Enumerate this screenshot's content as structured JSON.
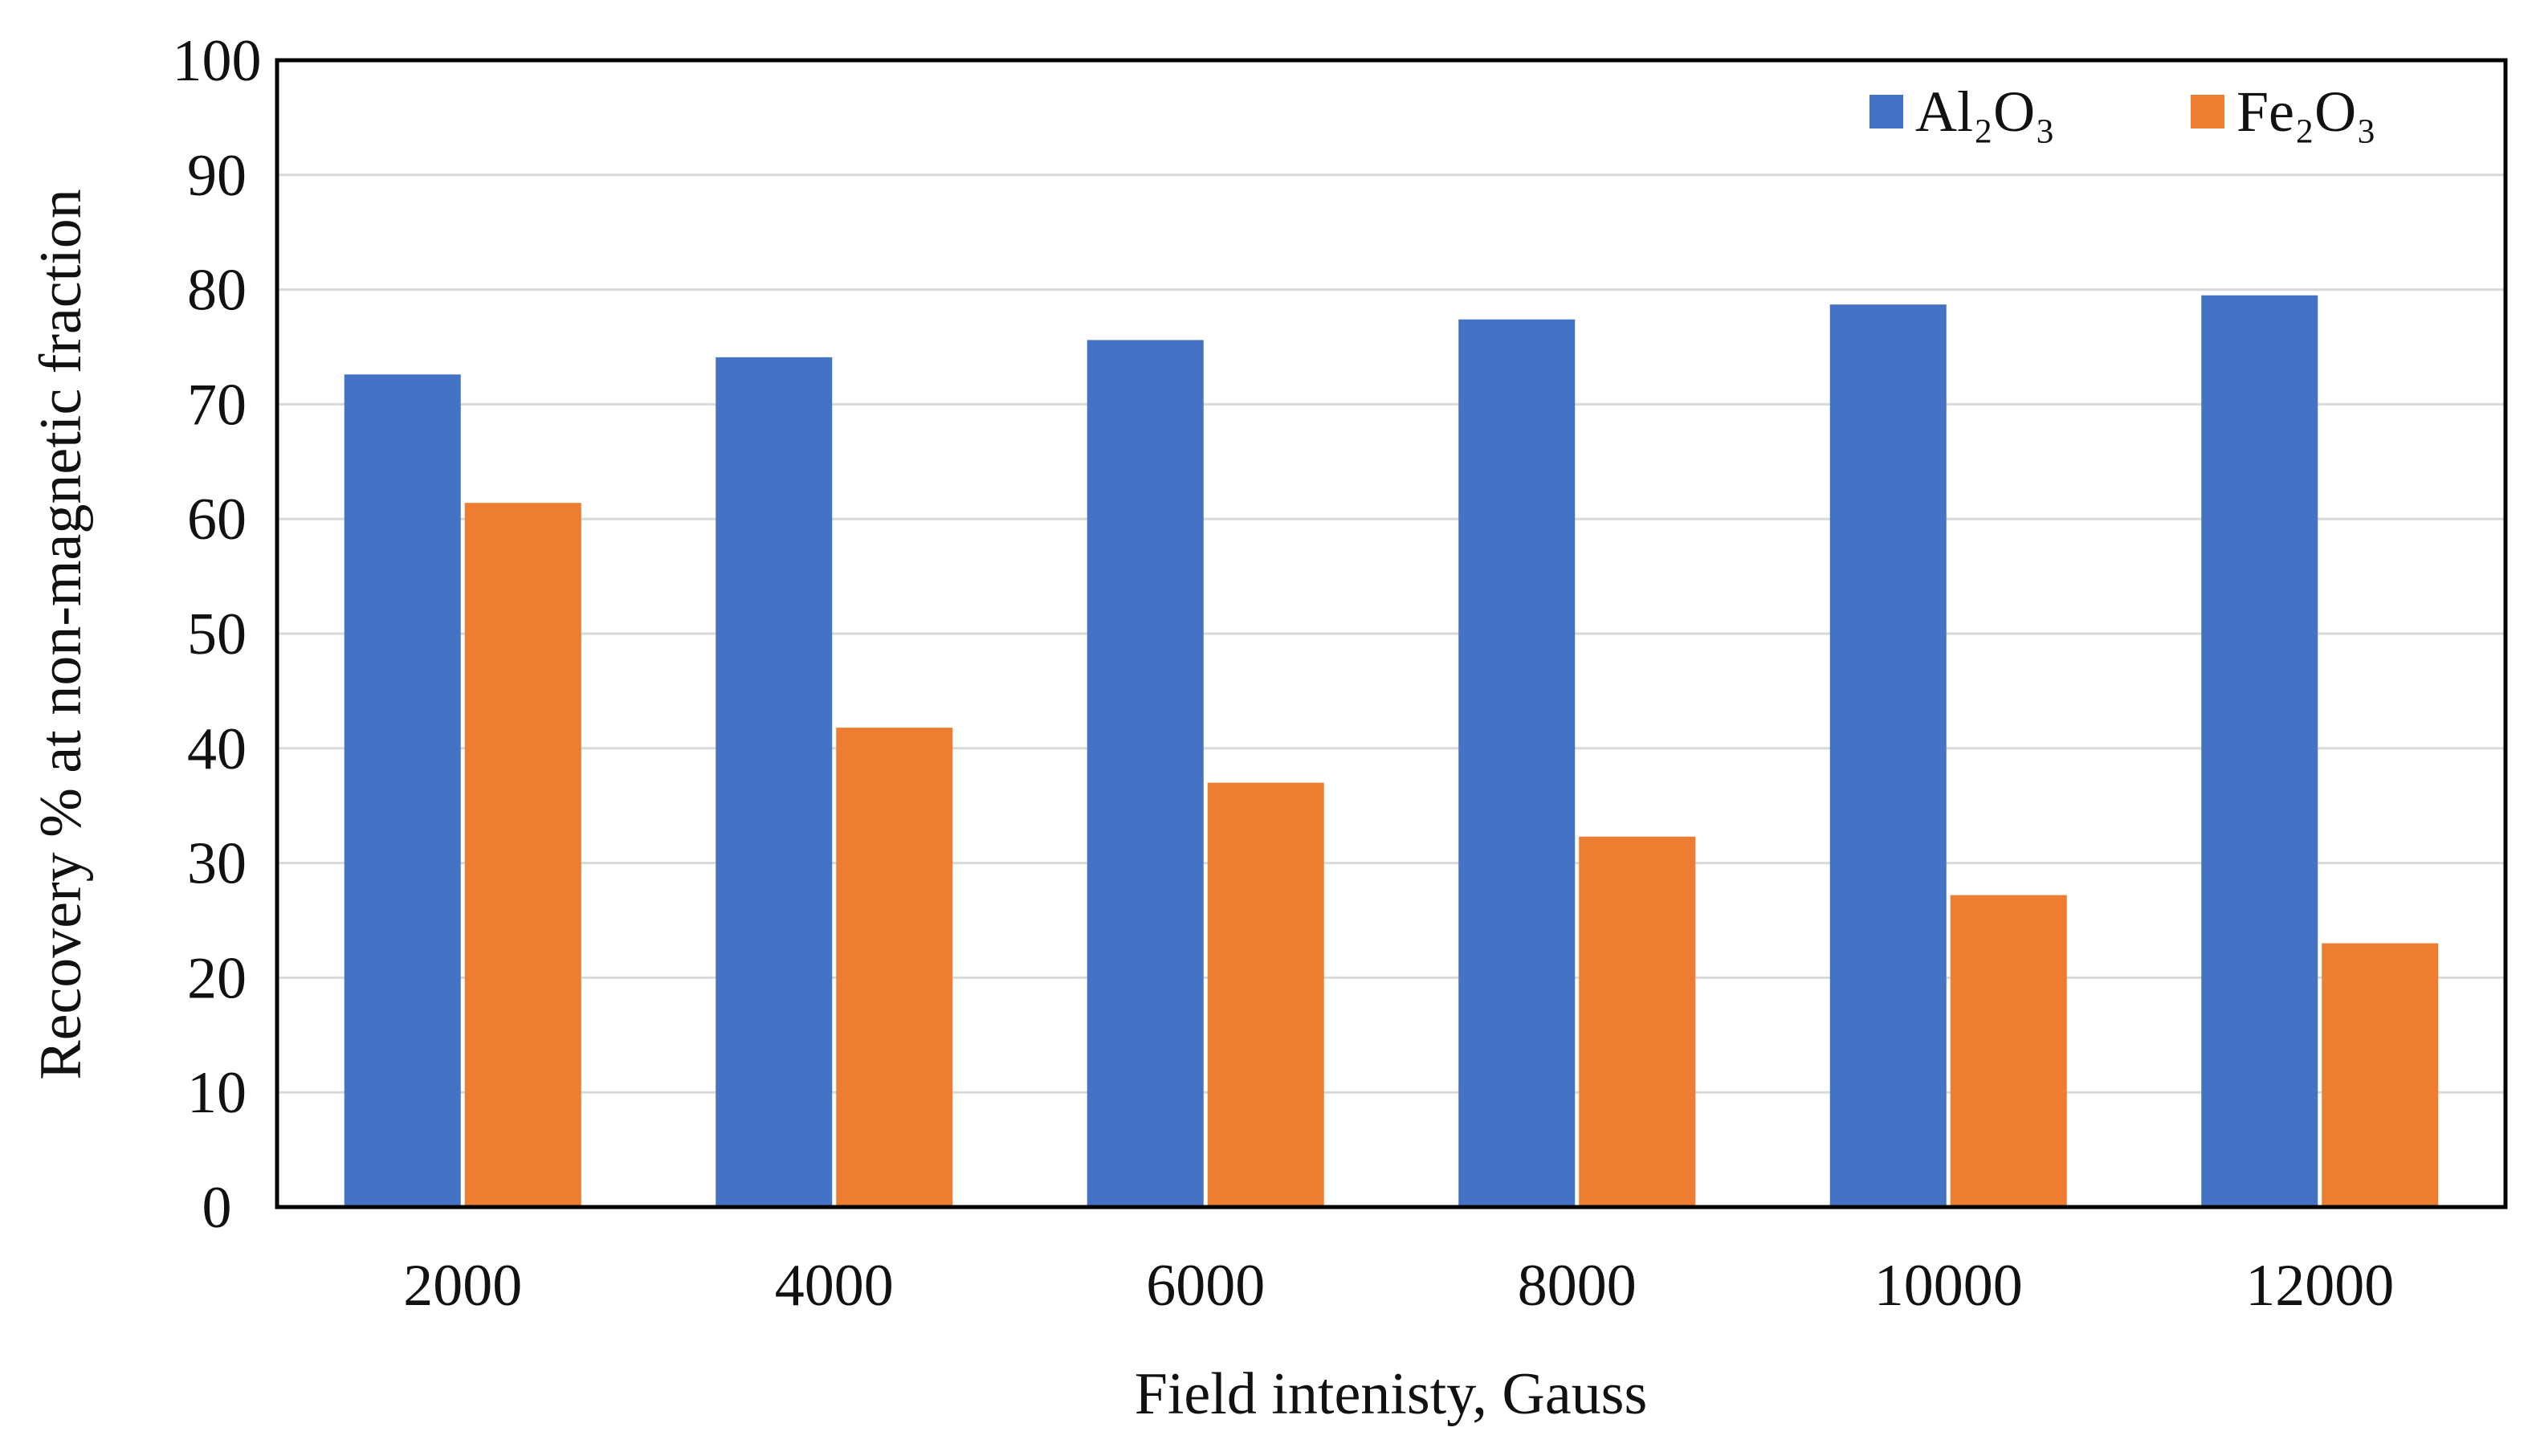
{
  "chart_data": {
    "type": "bar",
    "title": "",
    "xlabel": "Field intenisty, Gauss",
    "ylabel": "Recovery % at non-magnetic fraction",
    "categories": [
      "2000",
      "4000",
      "6000",
      "8000",
      "10000",
      "12000"
    ],
    "series": [
      {
        "name": "Al₂O₃",
        "color": "#4472C4",
        "values": [
          72.6,
          74.1,
          75.6,
          77.4,
          78.7,
          79.5
        ]
      },
      {
        "name": "Fe₂O₃",
        "color": "#ED7D31",
        "values": [
          61.4,
          41.8,
          37.0,
          32.3,
          27.2,
          23.0
        ]
      }
    ],
    "ylim": [
      0,
      100
    ],
    "yticks": [
      0,
      10,
      20,
      30,
      40,
      50,
      60,
      70,
      80,
      90,
      100
    ],
    "grid": true,
    "legend_position": "top-right"
  }
}
